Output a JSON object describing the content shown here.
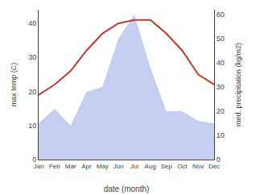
{
  "chart_data": {
    "type": "line",
    "categories": [
      "Jan",
      "Feb",
      "Mar",
      "Apr",
      "May",
      "Jun",
      "Jul",
      "Aug",
      "Sep",
      "Oct",
      "Nov",
      "Dec"
    ],
    "series": [
      {
        "type": "area",
        "axis": "y2",
        "color": "#c5cdf0",
        "values": [
          15,
          21,
          14,
          28,
          30,
          50,
          60,
          38,
          20,
          20,
          16,
          15
        ]
      },
      {
        "type": "line",
        "color": "#c0392b",
        "values": [
          19,
          22,
          26,
          32,
          37,
          40,
          41,
          41,
          37,
          32,
          25,
          22
        ]
      }
    ],
    "xlabel": "date (month)",
    "ylabel": "max temp (C)",
    "y2label": "med. precipitation (kg/m2)",
    "ylim": [
      0,
      44
    ],
    "yticks": [
      0,
      10,
      20,
      30,
      40
    ],
    "y2lim": [
      0,
      62
    ],
    "y2ticks": [
      0,
      10,
      20,
      30,
      40,
      50,
      60
    ],
    "grid": false
  }
}
